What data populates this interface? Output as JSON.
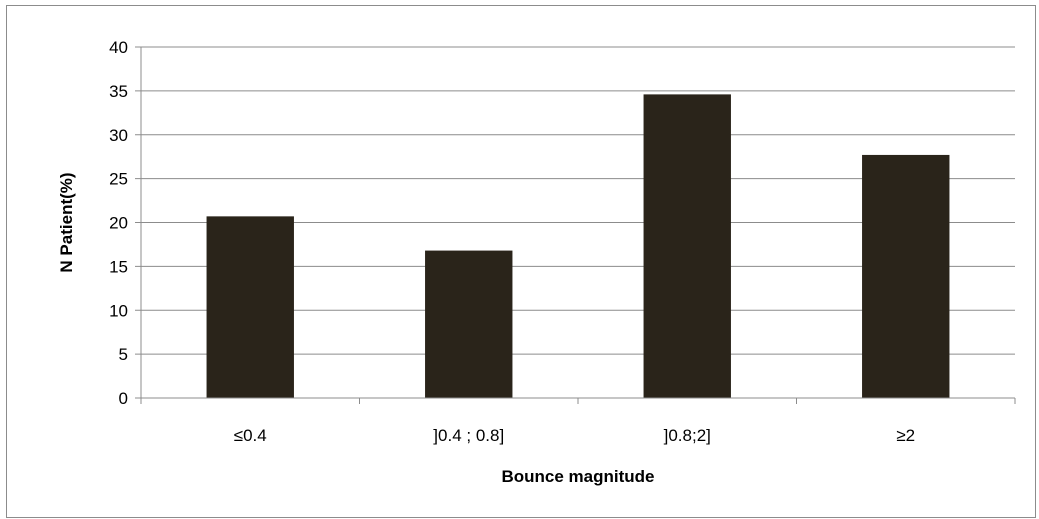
{
  "chart_data": {
    "type": "bar",
    "categories": [
      "≤0.4",
      "]0.4 ; 0.8]",
      "]0.8;2]",
      "≥2"
    ],
    "values": [
      20.7,
      16.8,
      34.6,
      27.7
    ],
    "title": "",
    "xlabel": "Bounce magnitude",
    "ylabel": "N Patient(%)",
    "ylim": [
      0,
      40
    ],
    "yticks": [
      0,
      5,
      10,
      15,
      20,
      25,
      30,
      35,
      40
    ],
    "grid": true,
    "bar_color": "#2a241a",
    "grid_color": "#8c8c8c"
  }
}
